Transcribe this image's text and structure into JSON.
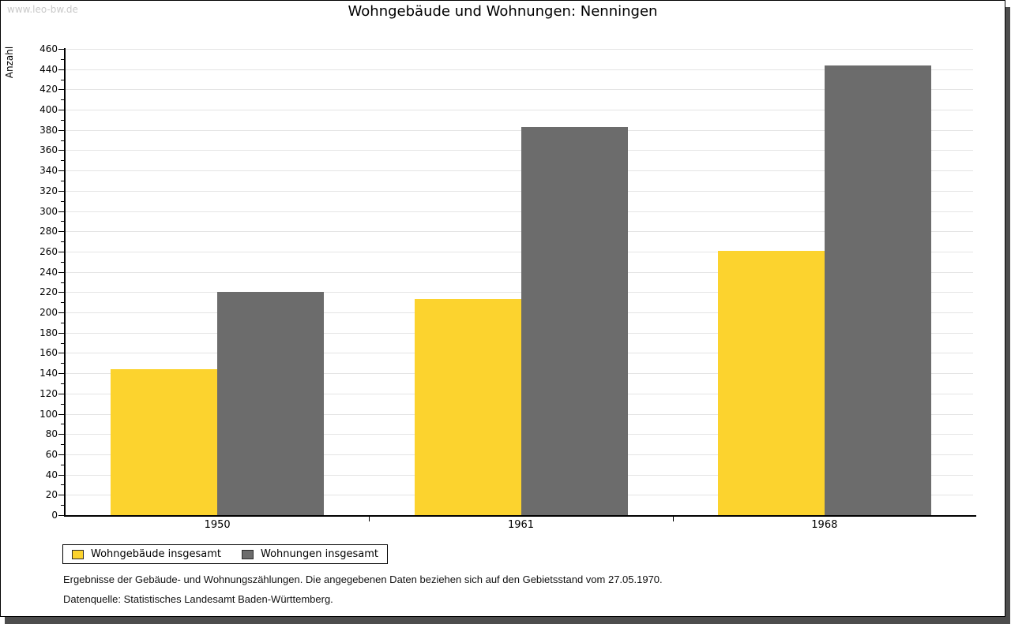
{
  "watermark": "www.leo-bw.de",
  "chart_data": {
    "type": "bar",
    "title": "Wohngebäude und Wohnungen: Nenningen",
    "categories": [
      "1950",
      "1961",
      "1968"
    ],
    "series": [
      {
        "name": "Wohngebäude insgesamt",
        "color": "#fcd32e",
        "values": [
          144,
          213,
          261
        ]
      },
      {
        "name": "Wohnungen insgesamt",
        "color": "#6c6c6c",
        "values": [
          220,
          383,
          444
        ]
      }
    ],
    "xlabel": "",
    "ylabel": "Anzahl",
    "ylim": [
      0,
      460
    ],
    "ytick_step": 20,
    "ytick_minor_step": 10,
    "grid": true,
    "legend_position": "bottom-left",
    "gridline_color": "#e4e4e4"
  },
  "footnotes": {
    "line1": "Ergebnisse der Gebäude- und Wohnungszählungen. Die angegebenen Daten beziehen sich auf den Gebietsstand vom 27.05.1970.",
    "line2": "Datenquelle: Statistisches Landesamt Baden-Württemberg."
  }
}
